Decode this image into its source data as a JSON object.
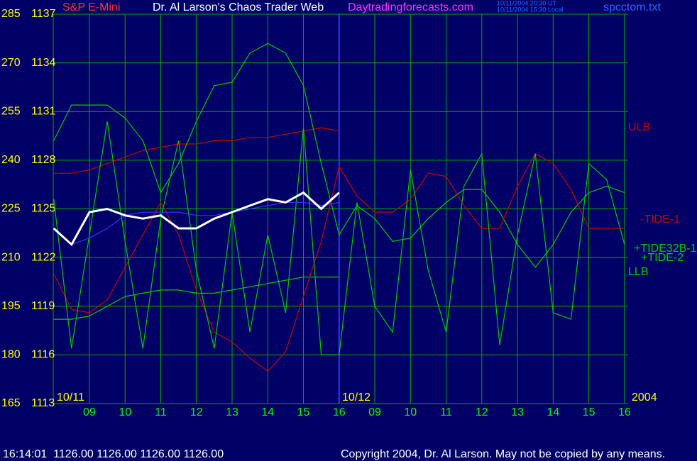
{
  "chart_data": {
    "type": "line",
    "title": "Dr. Al Larson's Chaos Trader Web",
    "source_label": "S&P E-Mini",
    "link": "Daytradingforecasts.com",
    "timestamps": [
      "10/11/2004 20:30 UT",
      "10/11/2004 15:30 Local"
    ],
    "filename": "spcctom.txt",
    "annotations": [
      "10/11",
      "10/12",
      "2004"
    ],
    "footer_quote": "16:14:01  1126.00 1126.00 1126.00 1126.00",
    "copyright": "Copyright 2004, Dr. Al Larson. May not be copied by any means.",
    "categories": [
      null,
      null,
      "09",
      null,
      "10",
      null,
      "11",
      null,
      "12",
      null,
      "13",
      null,
      "14",
      null,
      "15",
      null,
      "16",
      null,
      "09",
      null,
      "10",
      null,
      "11",
      null,
      "12",
      null,
      "13",
      null,
      "14",
      null,
      "15",
      null,
      "16"
    ],
    "ylim": [
      165,
      285
    ],
    "yticks": [
      165,
      180,
      195,
      210,
      225,
      240,
      255,
      270,
      285
    ],
    "y2lim": [
      1113,
      1137
    ],
    "y2ticks": [
      1113,
      1116,
      1119,
      1122,
      1125,
      1128,
      1131,
      1134,
      1137
    ],
    "grid": true,
    "series": [
      {
        "color": "#ffffff",
        "values": [
          219,
          214,
          224,
          225,
          223,
          222,
          223,
          219,
          219,
          222,
          224,
          226,
          228,
          227,
          230,
          225,
          230,
          null,
          null,
          null,
          null,
          null,
          null,
          null,
          null,
          null,
          null,
          null,
          null,
          null,
          null,
          null,
          null
        ]
      },
      {
        "color": "#3333ff",
        "values": [
          null,
          214,
          216,
          219,
          223,
          224,
          224,
          224,
          223,
          223,
          224,
          225,
          226,
          227,
          227,
          226,
          227,
          null,
          null,
          null,
          null,
          null,
          null,
          null,
          null,
          null,
          null,
          null,
          null,
          null,
          null,
          null,
          null
        ]
      },
      {
        "name": "ULB",
        "color": "#cc0000",
        "values": [
          236,
          236,
          237,
          239,
          241,
          243,
          244,
          245,
          245,
          246,
          246,
          247,
          247,
          248,
          249,
          250,
          249,
          null,
          null,
          null,
          null,
          null,
          null,
          null,
          null,
          null,
          null,
          null,
          null,
          null,
          null,
          null,
          null
        ]
      },
      {
        "name": "LLB",
        "color": "#00cc00",
        "values": [
          191,
          191,
          192,
          195,
          198,
          199,
          200,
          200,
          199,
          199,
          200,
          201,
          202,
          203,
          204,
          204,
          204,
          null,
          null,
          null,
          null,
          null,
          null,
          null,
          null,
          null,
          null,
          null,
          null,
          null,
          null,
          null,
          null
        ]
      },
      {
        "name": "+TIDE-2",
        "color": "#00cc00",
        "values": [
          246,
          257,
          257,
          257,
          253,
          246,
          230,
          239,
          252,
          263,
          264,
          273,
          276,
          273,
          263,
          239,
          217,
          226,
          222,
          215,
          216,
          222,
          227,
          231,
          231,
          224,
          214,
          207,
          214,
          224,
          230,
          232,
          230
        ]
      },
      {
        "name": "-TIDE-1",
        "color": "#cc0000",
        "values": [
          205,
          194,
          193,
          197,
          207,
          217,
          227,
          217,
          200,
          187,
          184,
          179,
          175,
          181,
          198,
          215,
          238,
          229,
          224,
          224,
          228,
          236,
          235,
          226,
          219,
          219,
          232,
          242,
          239,
          231,
          219,
          219,
          219
        ]
      },
      {
        "name": "+TIDE32B-1",
        "color": "#00cc00",
        "values": [
          228,
          182,
          217,
          252,
          215,
          182,
          222,
          246,
          206,
          182,
          224,
          187,
          217,
          193,
          250,
          180,
          180,
          227,
          195,
          187,
          237,
          206,
          187,
          232,
          242,
          183,
          217,
          242,
          193,
          191,
          239,
          234,
          214
        ]
      }
    ]
  }
}
